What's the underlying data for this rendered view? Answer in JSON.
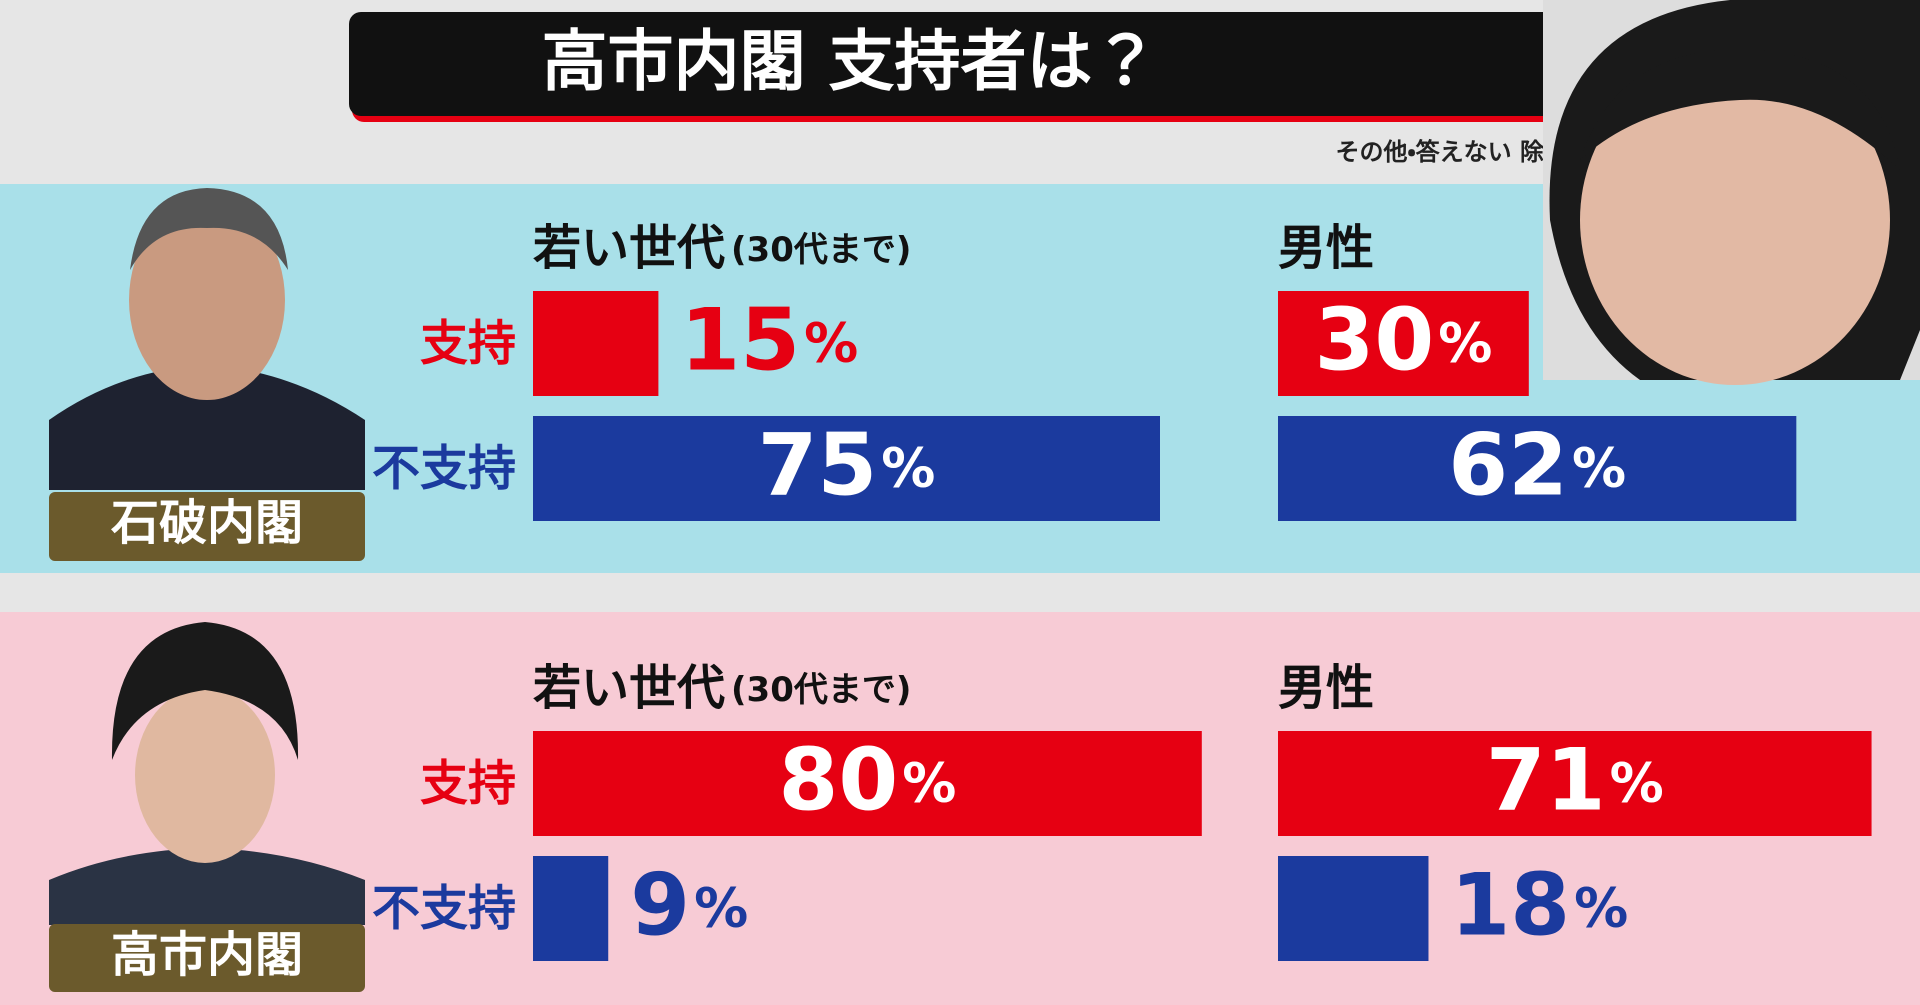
{
  "title": "高市内閣 支持者は？",
  "note": "その他・答えない 除く",
  "chart_data": [
    {
      "type": "bar",
      "panel": "石破内閣",
      "groups": [
        {
          "title": "若い世代",
          "subtitle": "(30代まで)"
        },
        {
          "title": "男性"
        }
      ],
      "series": [
        {
          "name": "支持",
          "color": "#e60012",
          "values": [
            15,
            30
          ]
        },
        {
          "name": "不支持",
          "color": "#1b3a9e",
          "values": [
            75,
            62
          ]
        }
      ],
      "unit": "%",
      "xlim": [
        0,
        100
      ]
    },
    {
      "type": "bar",
      "panel": "高市内閣",
      "groups": [
        {
          "title": "若い世代",
          "subtitle": "(30代まで)"
        },
        {
          "title": "男性"
        }
      ],
      "series": [
        {
          "name": "支持",
          "color": "#e60012",
          "values": [
            80,
            71
          ]
        },
        {
          "name": "不支持",
          "color": "#1b3a9e",
          "values": [
            9,
            18
          ]
        }
      ],
      "unit": "%",
      "xlim": [
        0,
        100
      ]
    }
  ]
}
